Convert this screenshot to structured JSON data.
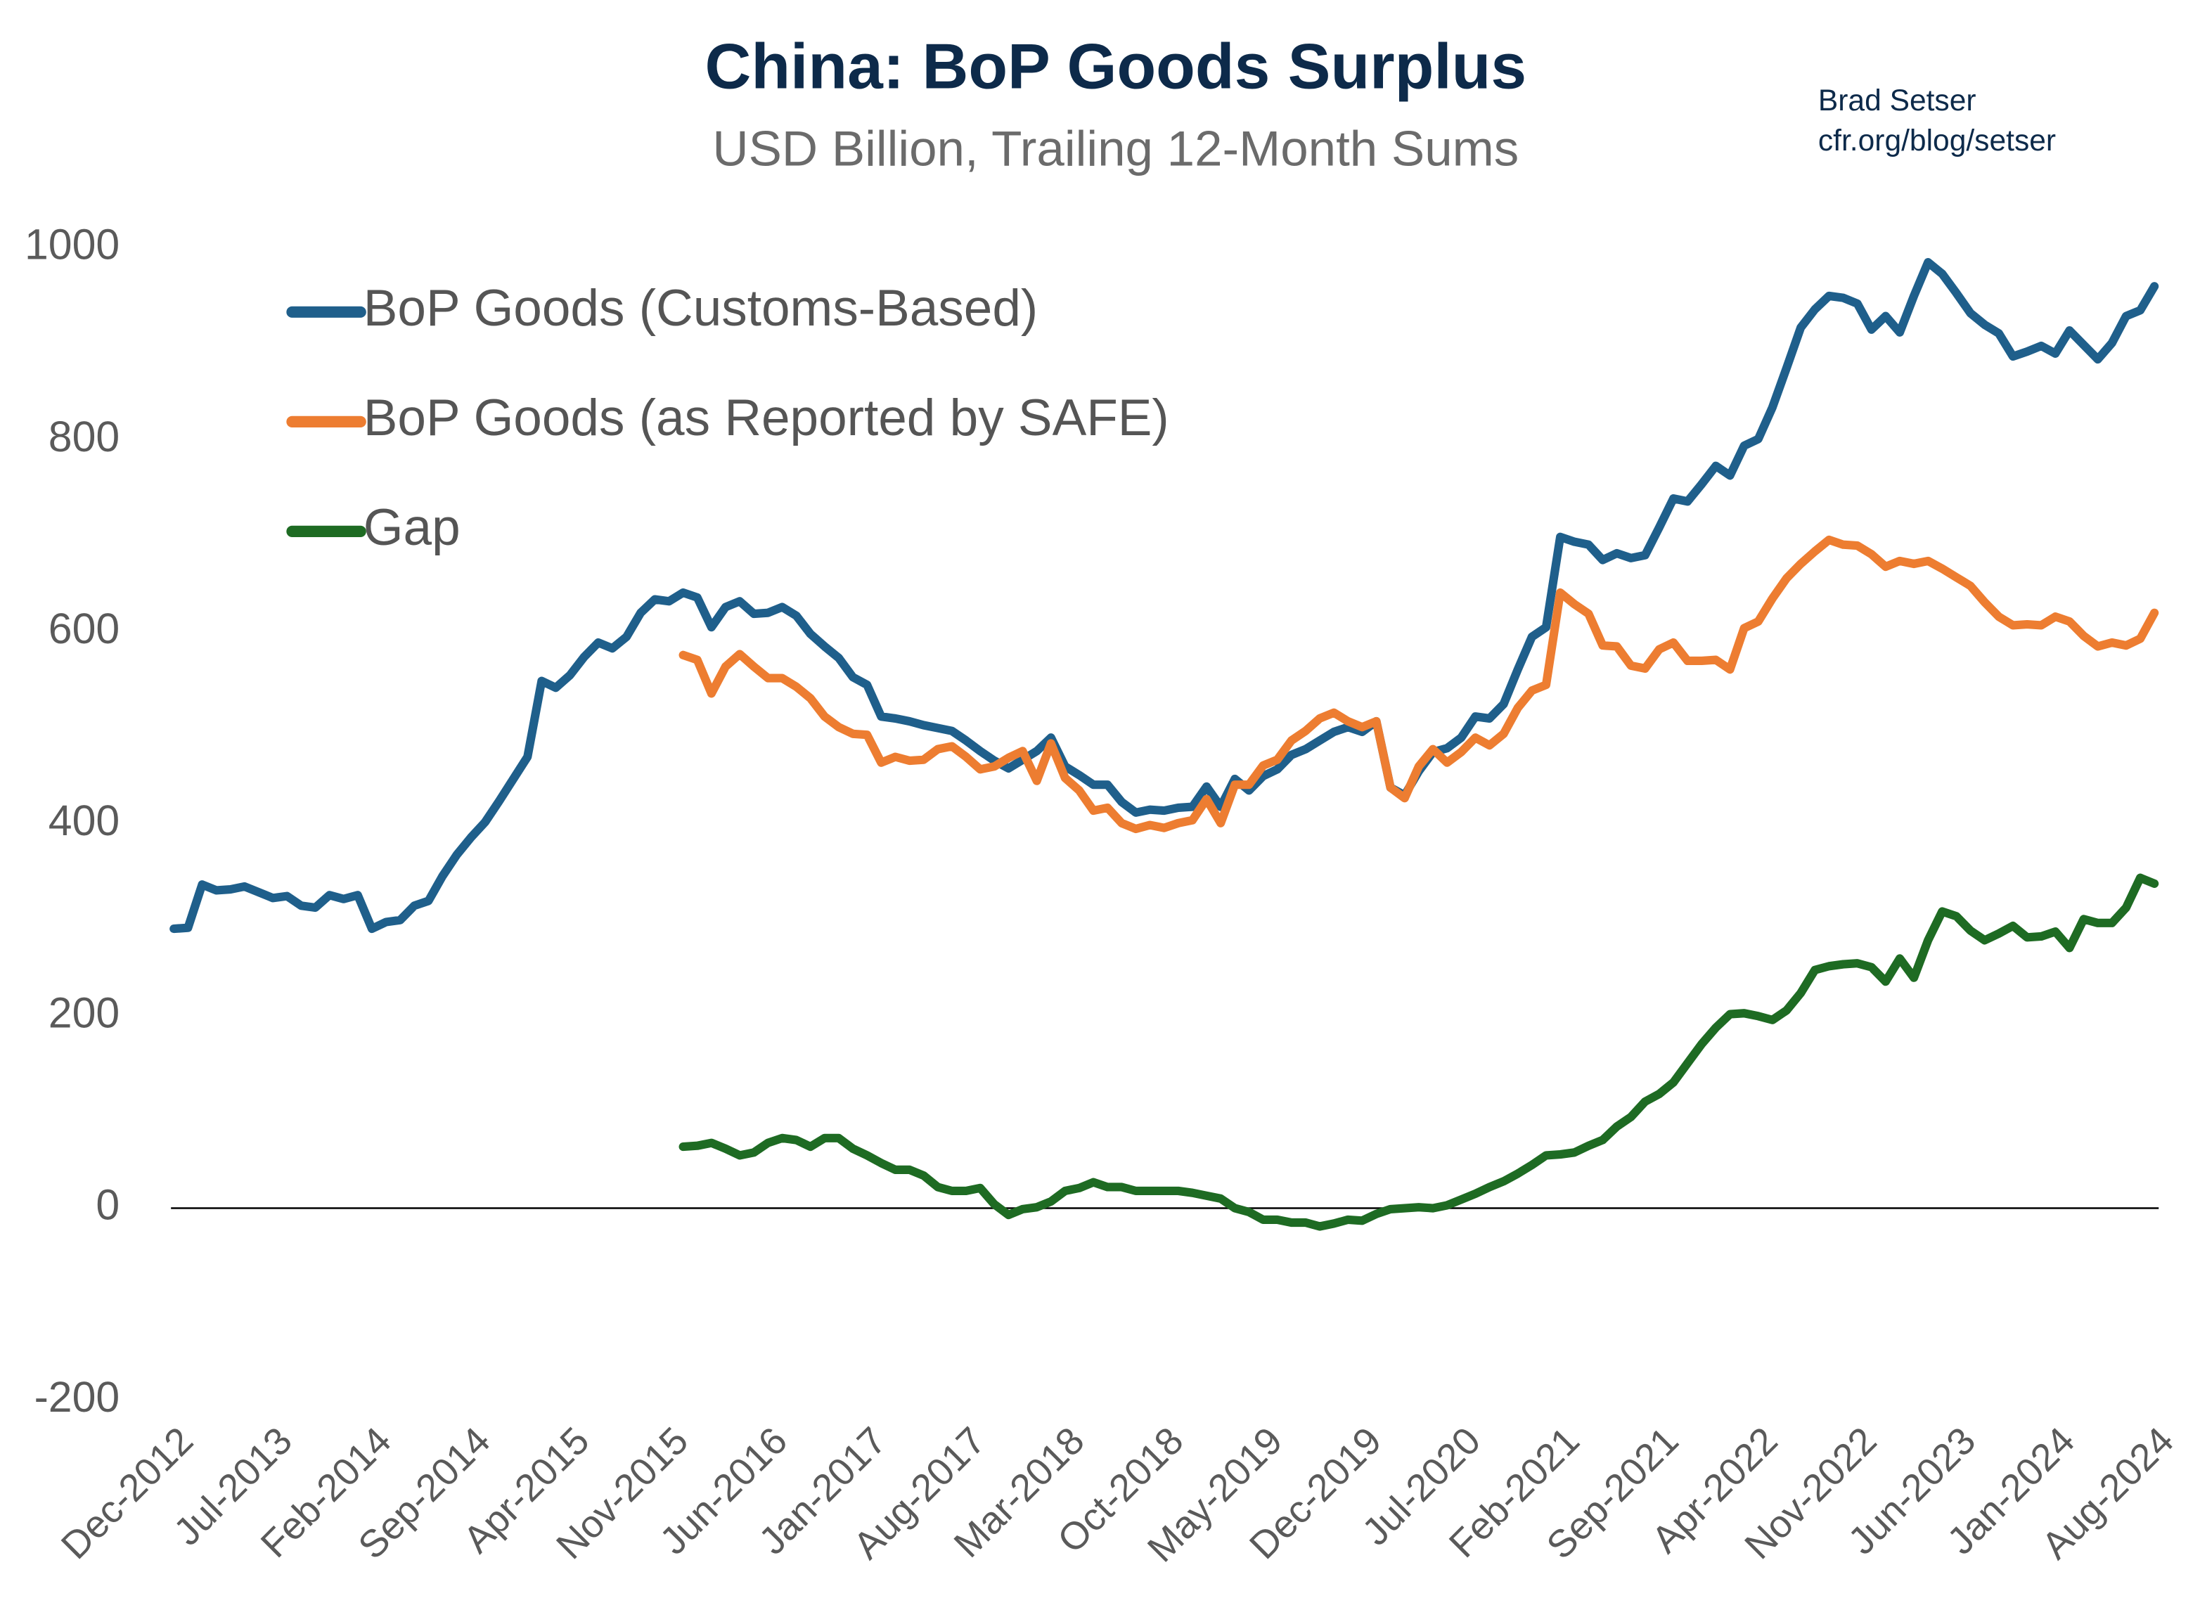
{
  "chart_data": {
    "type": "line",
    "title": "China: BoP Goods Surplus",
    "subtitle": "USD Billion, Trailing 12-Month Sums",
    "annotations": [
      "Brad Setser",
      "cfr.org/blog/setser"
    ],
    "categories": [
      "Dec-2012",
      null,
      null,
      null,
      null,
      null,
      null,
      "Jul-2013",
      null,
      null,
      null,
      null,
      null,
      null,
      "Feb-2014",
      null,
      null,
      null,
      null,
      null,
      null,
      "Sep-2014",
      null,
      null,
      null,
      null,
      null,
      null,
      "Apr-2015",
      null,
      null,
      null,
      null,
      null,
      null,
      "Nov-2015",
      null,
      null,
      null,
      null,
      null,
      null,
      "Jun-2016",
      null,
      null,
      null,
      null,
      null,
      null,
      "Jan-2017",
      null,
      null,
      null,
      null,
      null,
      null,
      "Aug-2017",
      null,
      null,
      null,
      null,
      null,
      null,
      "Mar-2018",
      null,
      null,
      null,
      null,
      null,
      null,
      "Oct-2018",
      null,
      null,
      null,
      null,
      null,
      null,
      "May-2019",
      null,
      null,
      null,
      null,
      null,
      null,
      "Dec-2019",
      null,
      null,
      null,
      null,
      null,
      null,
      "Jul-2020",
      null,
      null,
      null,
      null,
      null,
      null,
      "Feb-2021",
      null,
      null,
      null,
      null,
      null,
      null,
      "Sep-2021",
      null,
      null,
      null,
      null,
      null,
      null,
      "Apr-2022",
      null,
      null,
      null,
      null,
      null,
      null,
      "Nov-2022",
      null,
      null,
      null,
      null,
      null,
      null,
      "Jun-2023",
      null,
      null,
      null,
      null,
      null,
      null,
      "Jan-2024",
      null,
      null,
      null,
      null,
      null,
      null,
      "Aug-2024"
    ],
    "series": [
      {
        "name": "BoP Goods (Customs-Based)",
        "color": "#1f5f8b",
        "values": [
          291,
          292,
          337,
          331,
          332,
          335,
          329,
          323,
          325,
          315,
          313,
          326,
          322,
          326,
          291,
          298,
          300,
          315,
          320,
          346,
          368,
          386,
          402,
          424,
          447,
          470,
          549,
          542,
          555,
          574,
          589,
          583,
          595,
          620,
          634,
          632,
          641,
          636,
          605,
          626,
          632,
          619,
          620,
          626,
          617,
          598,
          585,
          573,
          553,
          545,
          512,
          510,
          507,
          503,
          500,
          497,
          487,
          476,
          466,
          458,
          467,
          476,
          490,
          460,
          451,
          441,
          441,
          423,
          412,
          415,
          414,
          417,
          418,
          439,
          418,
          447,
          435,
          450,
          457,
          472,
          478,
          487,
          496,
          501,
          496,
          507,
          438,
          430,
          455,
          475,
          479,
          490,
          512,
          510,
          525,
          561,
          595,
          605,
          699,
          694,
          691,
          675,
          682,
          677,
          680,
          709,
          739,
          736,
          754,
          773,
          763,
          794,
          801,
          834,
          875,
          917,
          936,
          950,
          948,
          942,
          915,
          929,
          912,
          950,
          985,
          973,
          953,
          932,
          920,
          911,
          887,
          892,
          898,
          890,
          914,
          899,
          884,
          901,
          929,
          935,
          960
        ]
      },
      {
        "name": "BoP Goods (as Reported by SAFE)",
        "color": "#ed7d31",
        "values": [
          null,
          null,
          null,
          null,
          null,
          null,
          null,
          null,
          null,
          null,
          null,
          null,
          null,
          null,
          null,
          null,
          null,
          null,
          null,
          null,
          null,
          null,
          null,
          null,
          null,
          null,
          null,
          null,
          null,
          null,
          null,
          null,
          null,
          null,
          null,
          null,
          576,
          571,
          536,
          564,
          577,
          564,
          552,
          552,
          543,
          531,
          512,
          501,
          494,
          493,
          464,
          470,
          466,
          467,
          478,
          481,
          470,
          457,
          460,
          469,
          476,
          445,
          484,
          448,
          435,
          414,
          417,
          401,
          395,
          399,
          396,
          401,
          404,
          426,
          401,
          441,
          441,
          461,
          467,
          487,
          497,
          510,
          516,
          507,
          501,
          507,
          438,
          427,
          460,
          478,
          464,
          475,
          490,
          482,
          494,
          521,
          539,
          545,
          641,
          629,
          619,
          586,
          585,
          565,
          562,
          582,
          589,
          570,
          570,
          571,
          561,
          604,
          611,
          635,
          656,
          671,
          684,
          696,
          691,
          690,
          681,
          668,
          674,
          671,
          674,
          666,
          657,
          648,
          631,
          616,
          607,
          608,
          607,
          616,
          611,
          596,
          585,
          589,
          586,
          593,
          620
        ]
      },
      {
        "name": "Gap",
        "color": "#1e6b23",
        "values": [
          null,
          null,
          null,
          null,
          null,
          null,
          null,
          null,
          null,
          null,
          null,
          null,
          null,
          null,
          null,
          null,
          null,
          null,
          null,
          null,
          null,
          null,
          null,
          null,
          null,
          null,
          null,
          null,
          null,
          null,
          null,
          null,
          null,
          null,
          null,
          null,
          64,
          65,
          68,
          62,
          55,
          58,
          68,
          73,
          71,
          64,
          73,
          73,
          62,
          55,
          47,
          40,
          40,
          34,
          22,
          18,
          18,
          21,
          4,
          -7,
          -1,
          1,
          7,
          18,
          21,
          27,
          22,
          22,
          18,
          18,
          18,
          18,
          16,
          13,
          10,
          0,
          -4,
          -12,
          -12,
          -15,
          -15,
          -19,
          -16,
          -12,
          -13,
          -6,
          -1,
          0,
          1,
          0,
          3,
          9,
          15,
          22,
          28,
          36,
          45,
          55,
          56,
          58,
          65,
          71,
          85,
          95,
          111,
          119,
          131,
          151,
          171,
          188,
          202,
          203,
          200,
          196,
          206,
          224,
          248,
          252,
          254,
          255,
          251,
          236,
          260,
          240,
          279,
          309,
          304,
          289,
          279,
          286,
          294,
          282,
          283,
          288,
          271,
          301,
          297,
          297,
          313,
          344,
          338
        ]
      }
    ],
    "ylim": [
      -200,
      1000
    ],
    "yticks": [
      -200,
      0,
      200,
      400,
      600,
      800,
      1000
    ],
    "grid": false,
    "legend": "upper left"
  }
}
